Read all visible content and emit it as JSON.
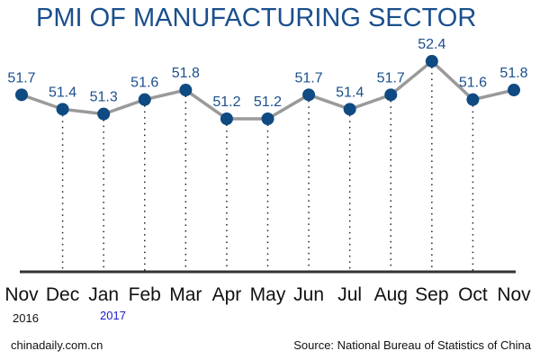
{
  "chart_data": {
    "type": "line",
    "title": "PMI OF MANUFACTURING SECTOR",
    "categories": [
      "Nov",
      "Dec",
      "Jan",
      "Feb",
      "Mar",
      "Apr",
      "May",
      "Jun",
      "Jul",
      "Aug",
      "Sep",
      "Oct",
      "Nov"
    ],
    "values": [
      51.7,
      51.4,
      51.3,
      51.6,
      51.8,
      51.2,
      51.2,
      51.7,
      51.4,
      51.7,
      52.4,
      51.6,
      51.8
    ],
    "year_labels": [
      "2016",
      "2017"
    ],
    "grid": false,
    "colors": {
      "title": "#1b4f8c",
      "marker": "#0f4a82",
      "line": "#9a9a9a",
      "label": "#1b4f8c",
      "year_2017": "#1a1acc"
    }
  },
  "footer": {
    "left": "chinadaily.com.cn",
    "right": "Source: National Bureau of Statistics of China"
  }
}
